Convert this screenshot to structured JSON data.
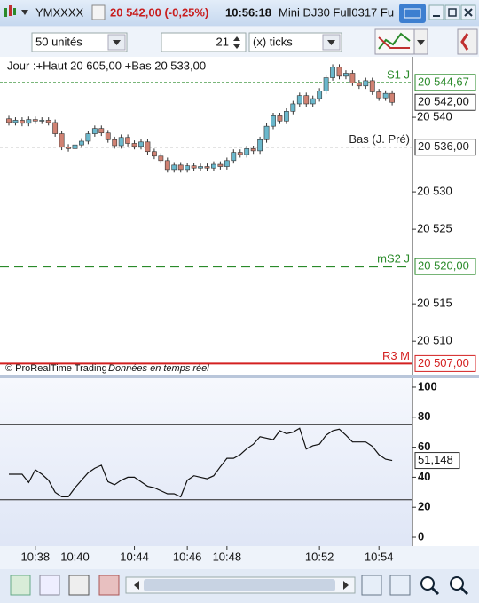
{
  "window": {
    "symbol": "YMXXXX",
    "quote": "20 542,00 (-0,25%)",
    "time": "10:56:18",
    "name": "Mini DJ30 Full0317 Fu"
  },
  "toolbar": {
    "units": "50 unités",
    "ticks_value": "21",
    "ticks_unit": "(x) ticks"
  },
  "chart_data": [
    {
      "type": "candlestick",
      "subtitle": "Jour :+Haut 20 605,00 +Bas 20 533,00",
      "source": "© ProRealTime Trading",
      "note": "Données en temps réel",
      "categories": [
        null,
        null,
        null,
        null,
        "10:38",
        null,
        null,
        null,
        null,
        null,
        "10:40",
        null,
        null,
        null,
        null,
        null,
        null,
        null,
        null,
        "10:44",
        null,
        null,
        null,
        null,
        null,
        null,
        null,
        "10:46",
        null,
        null,
        null,
        null,
        null,
        "10:48",
        null,
        null,
        null,
        null,
        null,
        null,
        null,
        null,
        null,
        null,
        null,
        null,
        null,
        "10:52",
        null,
        null,
        null,
        null,
        null,
        null,
        null,
        null,
        "10:54",
        null,
        null
      ],
      "open": [
        20539.8,
        20539.3,
        20539.6,
        20539.2,
        20539.7,
        20539.5,
        20539.6,
        20539.3,
        20537.8,
        20536.0,
        20535.8,
        20536.3,
        20536.8,
        20537.8,
        20538.5,
        20537.9,
        20537.0,
        20536.2,
        20537.3,
        20536.5,
        20536.1,
        20536.7,
        20535.4,
        20534.8,
        20534.2,
        20533.0,
        20533.6,
        20533.0,
        20533.5,
        20533.2,
        20533.4,
        20533.2,
        20533.7,
        20533.4,
        20534.2,
        20535.3,
        20535.0,
        20535.8,
        20535.5,
        20537.0,
        20538.8,
        20540.2,
        20539.5,
        20540.8,
        20541.8,
        20542.9,
        20541.8,
        20542.5,
        20543.5,
        20545.3,
        20546.7,
        20545.5,
        20545.9,
        20544.6,
        20544.2,
        20544.9,
        20543.4,
        20542.6,
        20543.2
      ],
      "high": [
        20540.2,
        20540.0,
        20540.0,
        20540.1,
        20540.1,
        20540.0,
        20540.0,
        20539.7,
        20538.2,
        20536.4,
        20536.7,
        20537.2,
        20538.2,
        20538.9,
        20538.9,
        20538.3,
        20537.4,
        20537.7,
        20537.7,
        20536.9,
        20537.1,
        20537.1,
        20535.8,
        20535.2,
        20534.6,
        20534.0,
        20534.0,
        20533.9,
        20533.9,
        20533.8,
        20533.8,
        20534.1,
        20534.1,
        20534.6,
        20535.7,
        20535.7,
        20536.2,
        20536.2,
        20537.4,
        20539.2,
        20540.6,
        20540.6,
        20541.2,
        20542.2,
        20543.3,
        20543.3,
        20542.9,
        20543.9,
        20545.7,
        20547.1,
        20547.1,
        20546.3,
        20546.3,
        20545.0,
        20545.3,
        20545.3,
        20543.8,
        20543.6,
        20543.6
      ],
      "low": [
        20538.9,
        20538.9,
        20538.8,
        20538.8,
        20539.1,
        20539.1,
        20538.9,
        20537.4,
        20535.6,
        20535.4,
        20535.4,
        20535.9,
        20536.4,
        20537.4,
        20537.5,
        20536.6,
        20535.8,
        20535.8,
        20536.1,
        20535.7,
        20535.7,
        20535.0,
        20534.4,
        20533.8,
        20532.6,
        20532.6,
        20532.6,
        20532.6,
        20532.8,
        20532.8,
        20532.8,
        20532.8,
        20533.0,
        20533.0,
        20533.8,
        20534.6,
        20534.6,
        20535.1,
        20535.1,
        20536.6,
        20538.4,
        20539.1,
        20539.1,
        20540.4,
        20541.4,
        20541.4,
        20541.4,
        20542.1,
        20543.1,
        20544.9,
        20545.1,
        20545.1,
        20544.2,
        20543.8,
        20543.8,
        20543.0,
        20542.2,
        20542.2,
        20541.6
      ],
      "close": [
        20539.3,
        20539.6,
        20539.2,
        20539.7,
        20539.5,
        20539.6,
        20539.3,
        20537.8,
        20536.0,
        20535.8,
        20536.3,
        20536.8,
        20537.8,
        20538.5,
        20537.9,
        20537.0,
        20536.2,
        20537.3,
        20536.5,
        20536.1,
        20536.7,
        20535.4,
        20534.8,
        20534.2,
        20533.0,
        20533.6,
        20533.0,
        20533.5,
        20533.2,
        20533.4,
        20533.2,
        20533.7,
        20533.4,
        20534.2,
        20535.3,
        20535.0,
        20535.8,
        20535.5,
        20537.0,
        20538.8,
        20540.2,
        20539.5,
        20540.8,
        20541.8,
        20542.9,
        20541.8,
        20542.5,
        20543.5,
        20545.3,
        20546.7,
        20545.5,
        20545.9,
        20544.6,
        20544.2,
        20544.9,
        20543.4,
        20542.6,
        20543.2,
        20542.0
      ],
      "up_color": "#6bb8cc",
      "down_color": "#d08273",
      "ylim": [
        20505.5,
        20548.1
      ],
      "yticks": [
        {
          "value": 20510,
          "label": "20 510"
        },
        {
          "value": 20515,
          "label": "20 515"
        },
        {
          "value": 20525,
          "label": "20 525"
        },
        {
          "value": 20530,
          "label": "20 530"
        },
        {
          "value": 20540,
          "label": "20 540"
        }
      ],
      "last": 20542,
      "last_label": "20 542,00",
      "levels": [
        {
          "name": "S1 J",
          "value": 20544.67,
          "value_label": "20 544,67",
          "color": "#2a8a2a",
          "line_style": "dotted"
        },
        {
          "name": "Bas (J. Pré)",
          "value": 20536,
          "value_label": "20 536,00",
          "color": "#222222",
          "line_style": "dashed"
        },
        {
          "name": "mS2 J",
          "value": 20520,
          "value_label": "20 520,00",
          "color": "#2a8a2a",
          "line_style": "long-dashed"
        },
        {
          "name": "R3 M",
          "value": 20507,
          "value_label": "20 507,00",
          "color": "#d42020",
          "line_style": "solid"
        }
      ]
    },
    {
      "type": "line",
      "values": [
        42,
        42,
        42,
        36.5,
        45,
        42,
        38,
        30,
        27,
        27,
        33,
        38,
        43,
        46,
        48,
        37,
        35,
        38,
        40,
        40,
        37,
        34,
        33,
        31,
        29,
        29,
        27,
        38,
        41,
        40,
        39,
        41,
        47,
        52.6,
        52.6,
        55,
        59,
        62,
        67,
        66,
        65,
        71,
        69,
        70,
        72.6,
        58.8,
        61,
        62,
        68,
        71,
        72,
        68,
        63.5,
        63.5,
        63.5,
        60.6,
        55,
        52,
        51.148
      ],
      "color": "#111111",
      "ylim": [
        -5.9,
        105.9
      ],
      "yticks": [
        0,
        20,
        40,
        60,
        80,
        100
      ],
      "hlines": [
        75,
        25
      ],
      "last_label": "51,148"
    }
  ]
}
